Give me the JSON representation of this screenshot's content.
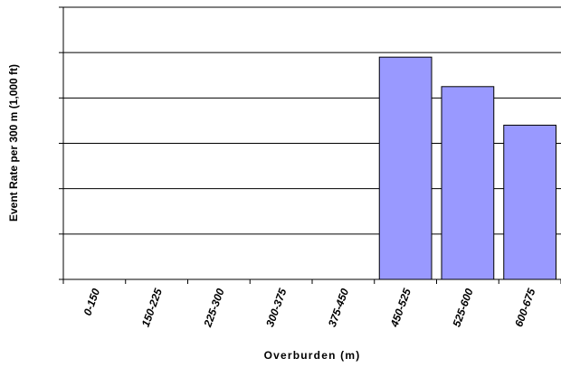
{
  "chart_data": {
    "type": "bar",
    "categories": [
      "0-150",
      "150-225",
      "225-300",
      "300-375",
      "375-450",
      "450-525",
      "525-600",
      "600-675"
    ],
    "values": [
      0,
      0,
      0,
      0,
      0,
      4.9,
      4.25,
      3.4
    ],
    "xlabel": "Overburden (m)",
    "ylabel": "Event Rate per 300 m (1,000 ft)",
    "ylim": [
      0,
      6
    ],
    "y_tick_labels_shown": false,
    "grid": true,
    "legend": "none",
    "bar_color": "#9999ff",
    "bar_edge_color": "#000000",
    "grid_color": "#000000"
  }
}
